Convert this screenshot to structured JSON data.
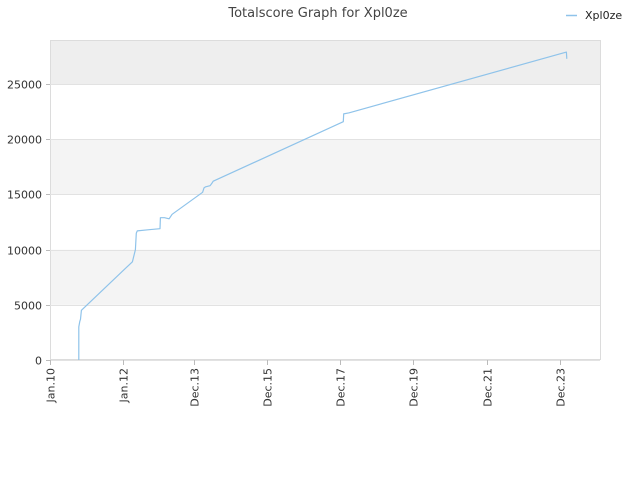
{
  "chart_data": {
    "type": "line",
    "title": "Totalscore Graph for Xpl0ze",
    "xlabel": "",
    "ylabel": "",
    "legend_position": "top-right",
    "grid": true,
    "x_tick_labels": [
      "Jan.10",
      "Jan.12",
      "Dec.13",
      "Dec.15",
      "Dec.17",
      "Dec.19",
      "Dec.21",
      "Dec.23"
    ],
    "x_ticks": [
      "2010-01-01",
      "2012-01-01",
      "2013-12-01",
      "2015-12-01",
      "2017-12-01",
      "2019-12-01",
      "2021-12-01",
      "2023-12-01"
    ],
    "xlim": [
      "2010-01-01",
      "2025-01-01"
    ],
    "y_ticks": [
      0,
      5000,
      10000,
      15000,
      20000,
      25000
    ],
    "ylim": [
      0,
      29000
    ],
    "series": [
      {
        "name": "Xpl0ze",
        "color": "#8fc3ea",
        "points": [
          [
            "2010-10-15",
            0
          ],
          [
            "2010-10-15",
            3000
          ],
          [
            "2010-10-25",
            3500
          ],
          [
            "2010-11-01",
            3700
          ],
          [
            "2010-11-10",
            4500
          ],
          [
            "2012-04-01",
            8900
          ],
          [
            "2012-05-01",
            10000
          ],
          [
            "2012-05-10",
            11500
          ],
          [
            "2012-05-20",
            11700
          ],
          [
            "2012-09-01",
            11800
          ],
          [
            "2013-01-01",
            11900
          ],
          [
            "2013-01-05",
            12900
          ],
          [
            "2013-02-15",
            12900
          ],
          [
            "2013-04-01",
            12800
          ],
          [
            "2013-05-01",
            13200
          ],
          [
            "2014-03-01",
            15200
          ],
          [
            "2014-03-15",
            15600
          ],
          [
            "2014-04-01",
            15700
          ],
          [
            "2014-05-15",
            15800
          ],
          [
            "2014-06-01",
            16000
          ],
          [
            "2014-06-15",
            16200
          ],
          [
            "2018-01-01",
            21600
          ],
          [
            "2018-01-05",
            22300
          ],
          [
            "2018-03-01",
            22400
          ],
          [
            "2024-02-01",
            27900
          ],
          [
            "2024-02-05",
            27300
          ]
        ]
      }
    ]
  }
}
